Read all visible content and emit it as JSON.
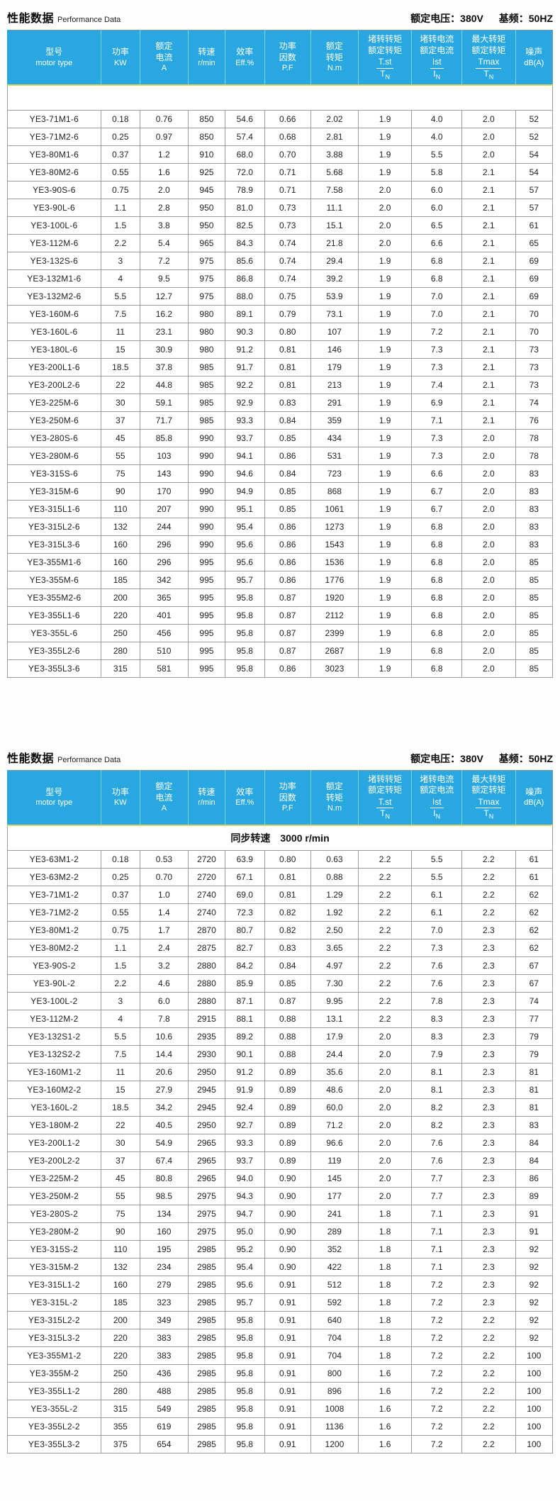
{
  "colors": {
    "header_bg": "#29a7e0",
    "header_text": "#ffffff",
    "body_text": "#222222",
    "grid_line": "#9b9b9b",
    "accent_line": "#d9d468"
  },
  "columns": [
    {
      "id": "model",
      "width": "17.1%",
      "lines": [
        "型号",
        "motor type"
      ]
    },
    {
      "id": "power",
      "width": "7.2%",
      "lines": [
        "功率",
        "KW"
      ]
    },
    {
      "id": "current",
      "width": "8.8%",
      "lines": [
        "额定",
        "电流",
        "A"
      ]
    },
    {
      "id": "speed",
      "width": "6.8%",
      "lines": [
        "转速",
        "r/min"
      ]
    },
    {
      "id": "eff",
      "width": "7.2%",
      "lines": [
        "效率",
        "Eff.%"
      ]
    },
    {
      "id": "pf",
      "width": "8.5%",
      "lines": [
        "功率",
        "因数",
        "P.F"
      ]
    },
    {
      "id": "torque",
      "width": "8.7%",
      "lines": [
        "额定",
        "转矩",
        "N.m"
      ]
    },
    {
      "id": "tst",
      "width": "9.8%",
      "lines": [
        "堵转转矩",
        "额定转矩"
      ],
      "frac": {
        "top": "T.st",
        "bottom": "T",
        "sub": "N"
      }
    },
    {
      "id": "ist",
      "width": "9.2%",
      "lines": [
        "堵转电流",
        "额定电流"
      ],
      "frac": {
        "top": "Ist",
        "bottom": "I",
        "sub": "N"
      }
    },
    {
      "id": "tmax",
      "width": "9.8%",
      "lines": [
        "最大转矩",
        "额定转矩"
      ],
      "frac": {
        "top": "Tmax",
        "bottom": "T",
        "sub": "N"
      }
    },
    {
      "id": "noise",
      "width": "6.8%",
      "lines": [
        "噪声",
        "dB(A)"
      ]
    }
  ],
  "sections": [
    {
      "title_cn": "性能数据",
      "title_en": "Performance Data",
      "voltage": "额定电压：380V",
      "frequency": "基频：50HZ",
      "subheader": "",
      "rows": [
        [
          "YE3-71M1-6",
          "0.18",
          "0.76",
          "850",
          "54.6",
          "0.66",
          "2.02",
          "1.9",
          "4.0",
          "2.0",
          "52"
        ],
        [
          "YE3-71M2-6",
          "0.25",
          "0.97",
          "850",
          "57.4",
          "0.68",
          "2.81",
          "1.9",
          "4.0",
          "2.0",
          "52"
        ],
        [
          "YE3-80M1-6",
          "0.37",
          "1.2",
          "910",
          "68.0",
          "0.70",
          "3.88",
          "1.9",
          "5.5",
          "2.0",
          "54"
        ],
        [
          "YE3-80M2-6",
          "0.55",
          "1.6",
          "925",
          "72.0",
          "0.71",
          "5.68",
          "1.9",
          "5.8",
          "2.1",
          "54"
        ],
        [
          "YE3-90S-6",
          "0.75",
          "2.0",
          "945",
          "78.9",
          "0.71",
          "7.58",
          "2.0",
          "6.0",
          "2.1",
          "57"
        ],
        [
          "YE3-90L-6",
          "1.1",
          "2.8",
          "950",
          "81.0",
          "0.73",
          "11.1",
          "2.0",
          "6.0",
          "2.1",
          "57"
        ],
        [
          "YE3-100L-6",
          "1.5",
          "3.8",
          "950",
          "82.5",
          "0.73",
          "15.1",
          "2.0",
          "6.5",
          "2.1",
          "61"
        ],
        [
          "YE3-112M-6",
          "2.2",
          "5.4",
          "965",
          "84.3",
          "0.74",
          "21.8",
          "2.0",
          "6.6",
          "2.1",
          "65"
        ],
        [
          "YE3-132S-6",
          "3",
          "7.2",
          "975",
          "85.6",
          "0.74",
          "29.4",
          "1.9",
          "6.8",
          "2.1",
          "69"
        ],
        [
          "YE3-132M1-6",
          "4",
          "9.5",
          "975",
          "86.8",
          "0.74",
          "39.2",
          "1.9",
          "6.8",
          "2.1",
          "69"
        ],
        [
          "YE3-132M2-6",
          "5.5",
          "12.7",
          "975",
          "88.0",
          "0.75",
          "53.9",
          "1.9",
          "7.0",
          "2.1",
          "69"
        ],
        [
          "YE3-160M-6",
          "7.5",
          "16.2",
          "980",
          "89.1",
          "0.79",
          "73.1",
          "1.9",
          "7.0",
          "2.1",
          "70"
        ],
        [
          "YE3-160L-6",
          "11",
          "23.1",
          "980",
          "90.3",
          "0.80",
          "107",
          "1.9",
          "7.2",
          "2.1",
          "70"
        ],
        [
          "YE3-180L-6",
          "15",
          "30.9",
          "980",
          "91.2",
          "0.81",
          "146",
          "1.9",
          "7.3",
          "2.1",
          "73"
        ],
        [
          "YE3-200L1-6",
          "18.5",
          "37.8",
          "985",
          "91.7",
          "0.81",
          "179",
          "1.9",
          "7.3",
          "2.1",
          "73"
        ],
        [
          "YE3-200L2-6",
          "22",
          "44.8",
          "985",
          "92.2",
          "0.81",
          "213",
          "1.9",
          "7.4",
          "2.1",
          "73"
        ],
        [
          "YE3-225M-6",
          "30",
          "59.1",
          "985",
          "92.9",
          "0.83",
          "291",
          "1.9",
          "6.9",
          "2.1",
          "74"
        ],
        [
          "YE3-250M-6",
          "37",
          "71.7",
          "985",
          "93.3",
          "0.84",
          "359",
          "1.9",
          "7.1",
          "2.1",
          "76"
        ],
        [
          "YE3-280S-6",
          "45",
          "85.8",
          "990",
          "93.7",
          "0.85",
          "434",
          "1.9",
          "7.3",
          "2.0",
          "78"
        ],
        [
          "YE3-280M-6",
          "55",
          "103",
          "990",
          "94.1",
          "0.86",
          "531",
          "1.9",
          "7.3",
          "2.0",
          "78"
        ],
        [
          "YE3-315S-6",
          "75",
          "143",
          "990",
          "94.6",
          "0.84",
          "723",
          "1.9",
          "6.6",
          "2.0",
          "83"
        ],
        [
          "YE3-315M-6",
          "90",
          "170",
          "990",
          "94.9",
          "0.85",
          "868",
          "1.9",
          "6.7",
          "2.0",
          "83"
        ],
        [
          "YE3-315L1-6",
          "110",
          "207",
          "990",
          "95.1",
          "0.85",
          "1061",
          "1.9",
          "6.7",
          "2.0",
          "83"
        ],
        [
          "YE3-315L2-6",
          "132",
          "244",
          "990",
          "95.4",
          "0.86",
          "1273",
          "1.9",
          "6.8",
          "2.0",
          "83"
        ],
        [
          "YE3-315L3-6",
          "160",
          "296",
          "990",
          "95.6",
          "0.86",
          "1543",
          "1.9",
          "6.8",
          "2.0",
          "83"
        ],
        [
          "YE3-355M1-6",
          "160",
          "296",
          "995",
          "95.6",
          "0.86",
          "1536",
          "1.9",
          "6.8",
          "2.0",
          "85"
        ],
        [
          "YE3-355M-6",
          "185",
          "342",
          "995",
          "95.7",
          "0.86",
          "1776",
          "1.9",
          "6.8",
          "2.0",
          "85"
        ],
        [
          "YE3-355M2-6",
          "200",
          "365",
          "995",
          "95.8",
          "0.87",
          "1920",
          "1.9",
          "6.8",
          "2.0",
          "85"
        ],
        [
          "YE3-355L1-6",
          "220",
          "401",
          "995",
          "95.8",
          "0.87",
          "2112",
          "1.9",
          "6.8",
          "2.0",
          "85"
        ],
        [
          "YE3-355L-6",
          "250",
          "456",
          "995",
          "95.8",
          "0.87",
          "2399",
          "1.9",
          "6.8",
          "2.0",
          "85"
        ],
        [
          "YE3-355L2-6",
          "280",
          "510",
          "995",
          "95.8",
          "0.87",
          "2687",
          "1.9",
          "6.8",
          "2.0",
          "85"
        ],
        [
          "YE3-355L3-6",
          "315",
          "581",
          "995",
          "95.8",
          "0.86",
          "3023",
          "1.9",
          "6.8",
          "2.0",
          "85"
        ]
      ]
    },
    {
      "title_cn": "性能数据",
      "title_en": "Performance Data",
      "voltage": "额定电压：380V",
      "frequency": "基频：50HZ",
      "subheader": "同步转速　3000 r/min",
      "rows": [
        [
          "YE3-63M1-2",
          "0.18",
          "0.53",
          "2720",
          "63.9",
          "0.80",
          "0.63",
          "2.2",
          "5.5",
          "2.2",
          "61"
        ],
        [
          "YE3-63M2-2",
          "0.25",
          "0.70",
          "2720",
          "67.1",
          "0.81",
          "0.88",
          "2.2",
          "5.5",
          "2.2",
          "61"
        ],
        [
          "YE3-71M1-2",
          "0.37",
          "1.0",
          "2740",
          "69.0",
          "0.81",
          "1.29",
          "2.2",
          "6.1",
          "2.2",
          "62"
        ],
        [
          "YE3-71M2-2",
          "0.55",
          "1.4",
          "2740",
          "72.3",
          "0.82",
          "1.92",
          "2.2",
          "6.1",
          "2.2",
          "62"
        ],
        [
          "YE3-80M1-2",
          "0.75",
          "1.7",
          "2870",
          "80.7",
          "0.82",
          "2.50",
          "2.2",
          "7.0",
          "2.3",
          "62"
        ],
        [
          "YE3-80M2-2",
          "1.1",
          "2.4",
          "2875",
          "82.7",
          "0.83",
          "3.65",
          "2.2",
          "7.3",
          "2.3",
          "62"
        ],
        [
          "YE3-90S-2",
          "1.5",
          "3.2",
          "2880",
          "84.2",
          "0.84",
          "4.97",
          "2.2",
          "7.6",
          "2.3",
          "67"
        ],
        [
          "YE3-90L-2",
          "2.2",
          "4.6",
          "2880",
          "85.9",
          "0.85",
          "7.30",
          "2.2",
          "7.6",
          "2.3",
          "67"
        ],
        [
          "YE3-100L-2",
          "3",
          "6.0",
          "2880",
          "87.1",
          "0.87",
          "9.95",
          "2.2",
          "7.8",
          "2.3",
          "74"
        ],
        [
          "YE3-112M-2",
          "4",
          "7.8",
          "2915",
          "88.1",
          "0.88",
          "13.1",
          "2.2",
          "8.3",
          "2.3",
          "77"
        ],
        [
          "YE3-132S1-2",
          "5.5",
          "10.6",
          "2935",
          "89.2",
          "0.88",
          "17.9",
          "2.0",
          "8.3",
          "2.3",
          "79"
        ],
        [
          "YE3-132S2-2",
          "7.5",
          "14.4",
          "2930",
          "90.1",
          "0.88",
          "24.4",
          "2.0",
          "7.9",
          "2.3",
          "79"
        ],
        [
          "YE3-160M1-2",
          "11",
          "20.6",
          "2950",
          "91.2",
          "0.89",
          "35.6",
          "2.0",
          "8.1",
          "2.3",
          "81"
        ],
        [
          "YE3-160M2-2",
          "15",
          "27.9",
          "2945",
          "91.9",
          "0.89",
          "48.6",
          "2.0",
          "8.1",
          "2.3",
          "81"
        ],
        [
          "YE3-160L-2",
          "18.5",
          "34.2",
          "2945",
          "92.4",
          "0.89",
          "60.0",
          "2.0",
          "8.2",
          "2.3",
          "81"
        ],
        [
          "YE3-180M-2",
          "22",
          "40.5",
          "2950",
          "92.7",
          "0.89",
          "71.2",
          "2.0",
          "8.2",
          "2.3",
          "83"
        ],
        [
          "YE3-200L1-2",
          "30",
          "54.9",
          "2965",
          "93.3",
          "0.89",
          "96.6",
          "2.0",
          "7.6",
          "2.3",
          "84"
        ],
        [
          "YE3-200L2-2",
          "37",
          "67.4",
          "2965",
          "93.7",
          "0.89",
          "119",
          "2.0",
          "7.6",
          "2.3",
          "84"
        ],
        [
          "YE3-225M-2",
          "45",
          "80.8",
          "2965",
          "94.0",
          "0.90",
          "145",
          "2.0",
          "7.7",
          "2.3",
          "86"
        ],
        [
          "YE3-250M-2",
          "55",
          "98.5",
          "2975",
          "94.3",
          "0.90",
          "177",
          "2.0",
          "7.7",
          "2.3",
          "89"
        ],
        [
          "YE3-280S-2",
          "75",
          "134",
          "2975",
          "94.7",
          "0.90",
          "241",
          "1.8",
          "7.1",
          "2.3",
          "91"
        ],
        [
          "YE3-280M-2",
          "90",
          "160",
          "2975",
          "95.0",
          "0.90",
          "289",
          "1.8",
          "7.1",
          "2.3",
          "91"
        ],
        [
          "YE3-315S-2",
          "110",
          "195",
          "2985",
          "95.2",
          "0.90",
          "352",
          "1.8",
          "7.1",
          "2.3",
          "92"
        ],
        [
          "YE3-315M-2",
          "132",
          "234",
          "2985",
          "95.4",
          "0.90",
          "422",
          "1.8",
          "7.1",
          "2.3",
          "92"
        ],
        [
          "YE3-315L1-2",
          "160",
          "279",
          "2985",
          "95.6",
          "0.91",
          "512",
          "1.8",
          "7.2",
          "2.3",
          "92"
        ],
        [
          "YE3-315L-2",
          "185",
          "323",
          "2985",
          "95.7",
          "0.91",
          "592",
          "1.8",
          "7.2",
          "2.3",
          "92"
        ],
        [
          "YE3-315L2-2",
          "200",
          "349",
          "2985",
          "95.8",
          "0.91",
          "640",
          "1.8",
          "7.2",
          "2.2",
          "92"
        ],
        [
          "YE3-315L3-2",
          "220",
          "383",
          "2985",
          "95.8",
          "0.91",
          "704",
          "1.8",
          "7.2",
          "2.2",
          "92"
        ],
        [
          "YE3-355M1-2",
          "220",
          "383",
          "2985",
          "95.8",
          "0.91",
          "704",
          "1.8",
          "7.2",
          "2.2",
          "100"
        ],
        [
          "YE3-355M-2",
          "250",
          "436",
          "2985",
          "95.8",
          "0.91",
          "800",
          "1.6",
          "7.2",
          "2.2",
          "100"
        ],
        [
          "YE3-355L1-2",
          "280",
          "488",
          "2985",
          "95.8",
          "0.91",
          "896",
          "1.6",
          "7.2",
          "2.2",
          "100"
        ],
        [
          "YE3-355L-2",
          "315",
          "549",
          "2985",
          "95.8",
          "0.91",
          "1008",
          "1.6",
          "7.2",
          "2.2",
          "100"
        ],
        [
          "YE3-355L2-2",
          "355",
          "619",
          "2985",
          "95.8",
          "0.91",
          "1136",
          "1.6",
          "7.2",
          "2.2",
          "100"
        ],
        [
          "YE3-355L3-2",
          "375",
          "654",
          "2985",
          "95.8",
          "0.91",
          "1200",
          "1.6",
          "7.2",
          "2.2",
          "100"
        ]
      ]
    }
  ]
}
